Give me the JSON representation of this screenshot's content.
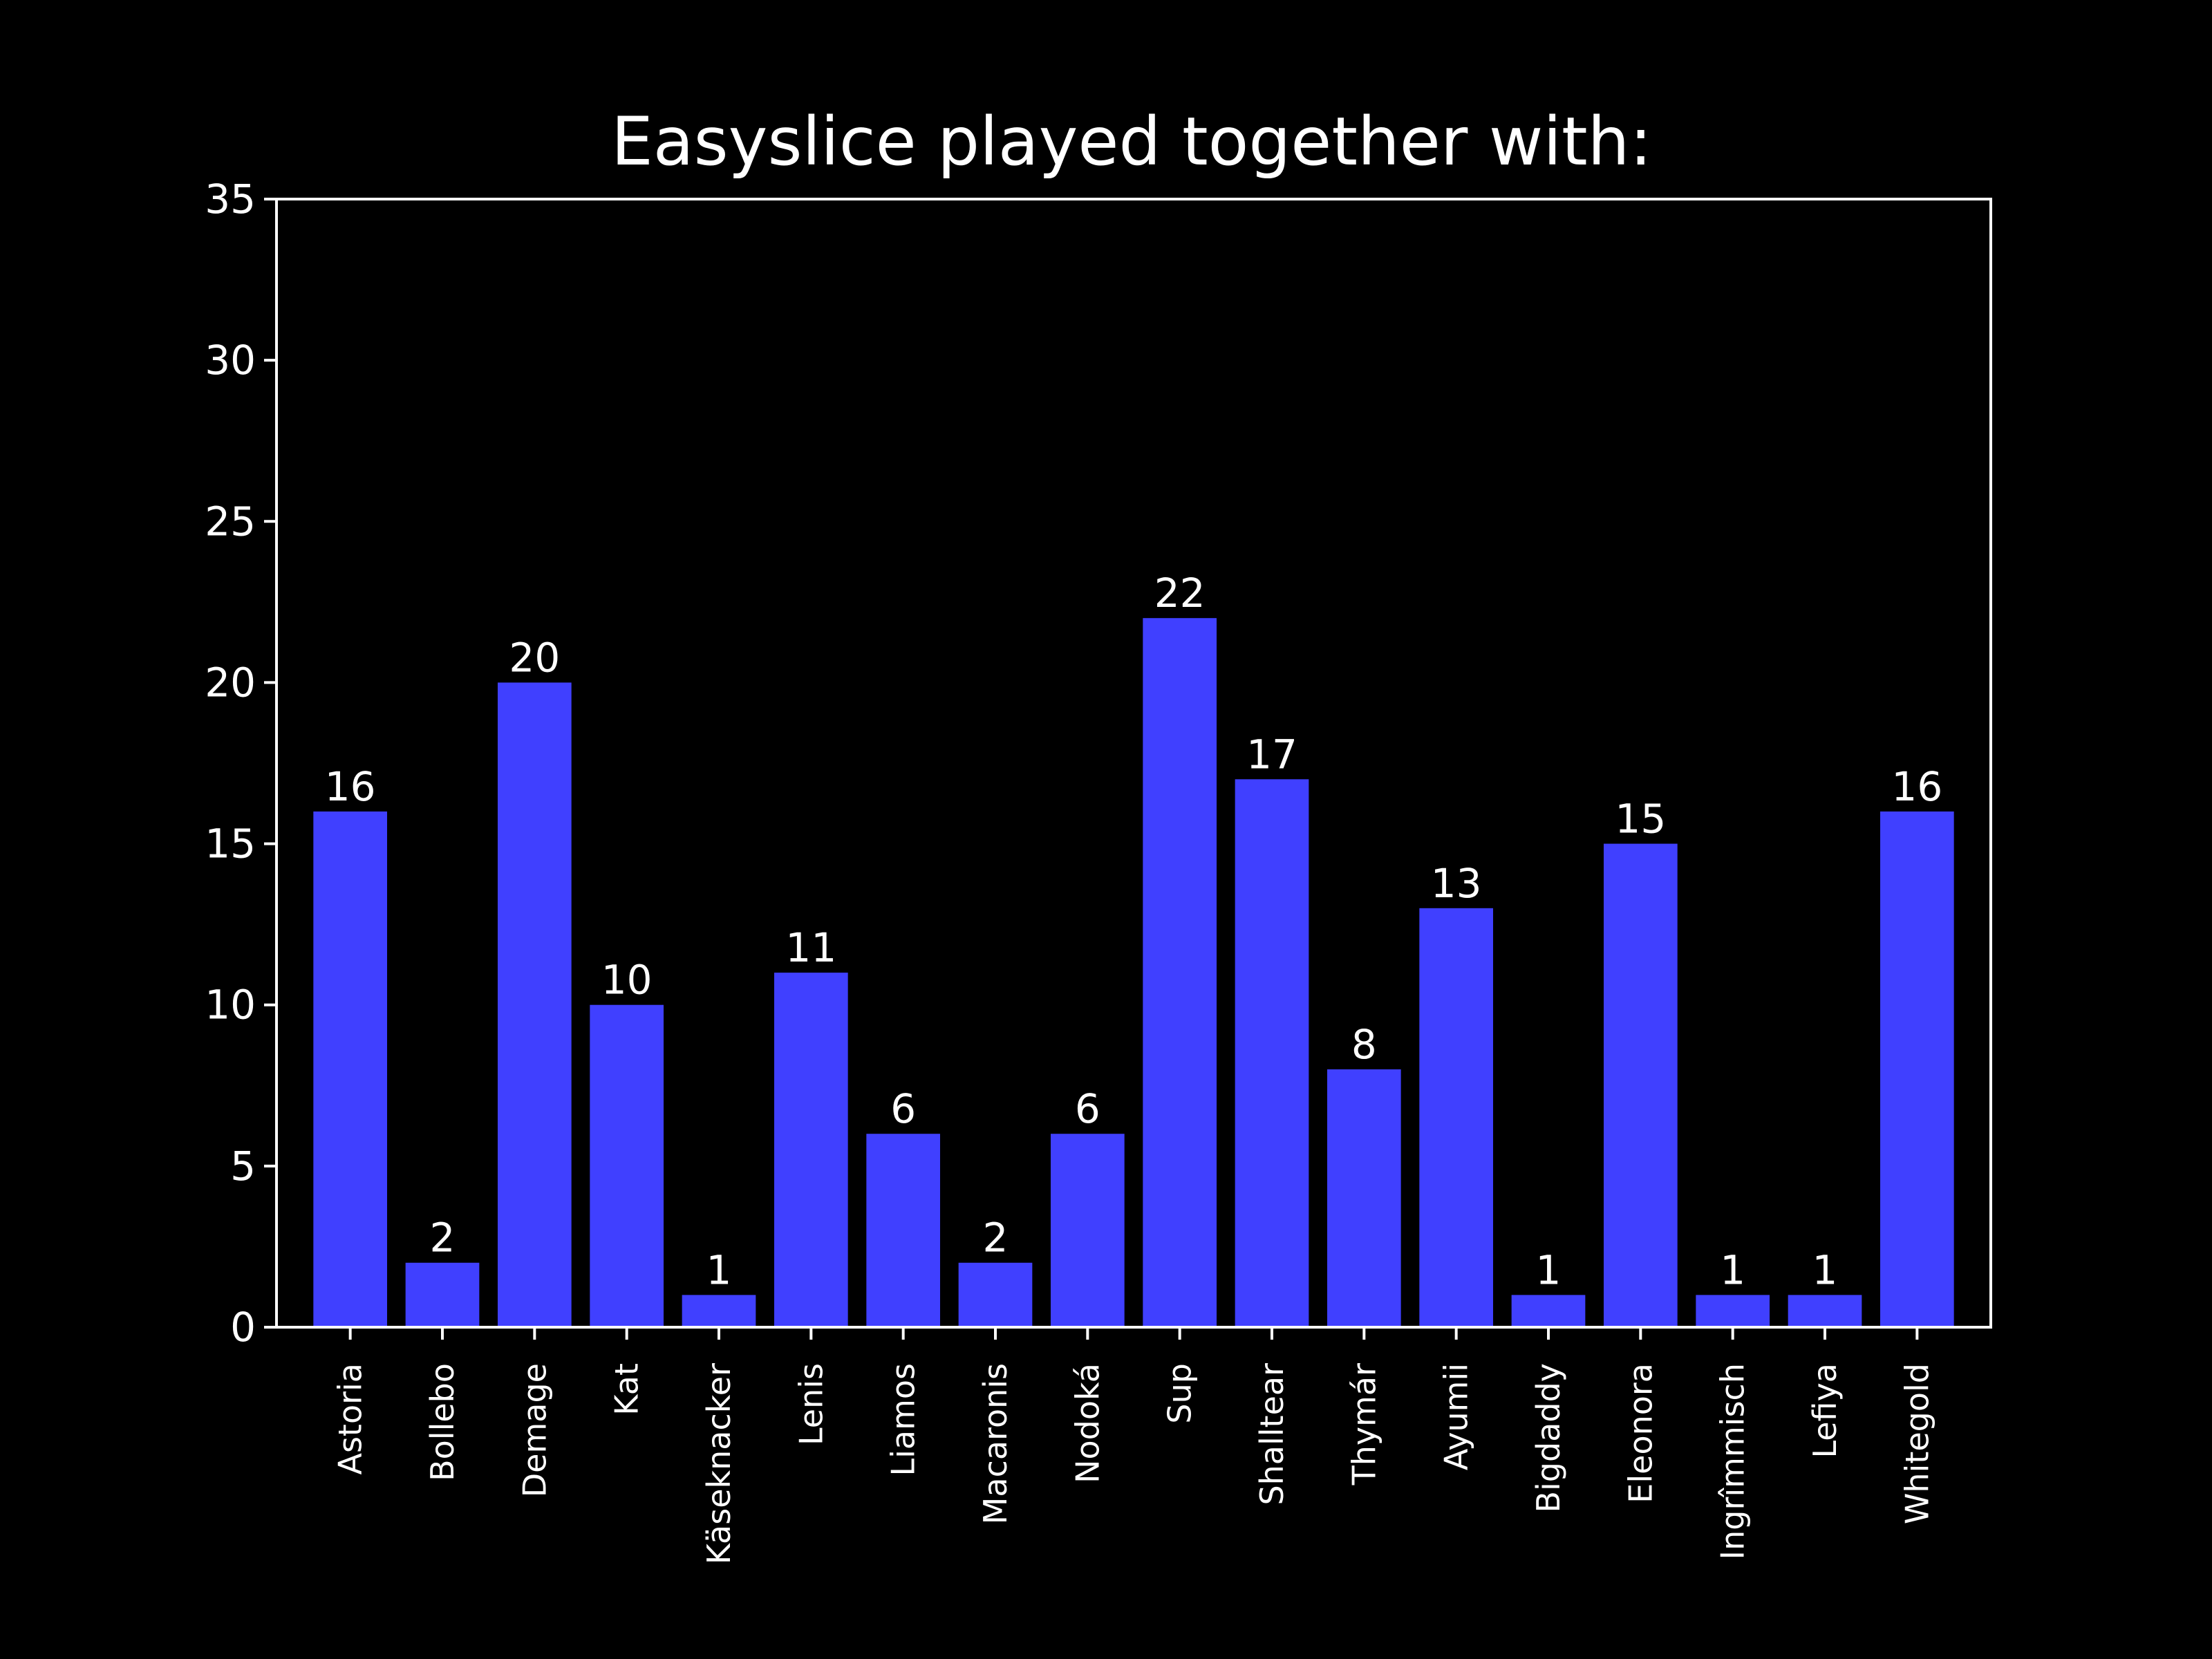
{
  "chart_data": {
    "type": "bar",
    "title": "Easyslice played together with:",
    "xlabel": "",
    "ylabel": "",
    "categories": [
      "Astoria",
      "Bollebo",
      "Demage",
      "Kat",
      "Käseknacker",
      "Lenis",
      "Liamos",
      "Macaronis",
      "Nodoká",
      "Sup",
      "Shalltear",
      "Thymár",
      "Ayumii",
      "Bigdaddy",
      "Eleonora",
      "Ingrîmmisch",
      "Lefiya",
      "Whitegold"
    ],
    "values": [
      16,
      2,
      20,
      10,
      1,
      11,
      6,
      2,
      6,
      22,
      17,
      8,
      13,
      1,
      15,
      1,
      1,
      16
    ],
    "ylim": [
      0,
      35
    ],
    "yticks": [
      0,
      5,
      10,
      15,
      20,
      25,
      30,
      35
    ],
    "bar_color": "#4040ff",
    "background": "#000000",
    "foreground": "#ffffff",
    "grid": false,
    "legend": "none",
    "data_labels": true,
    "x_tick_rotation": "vertical"
  }
}
